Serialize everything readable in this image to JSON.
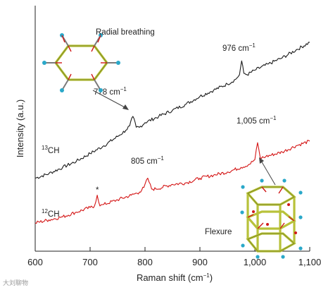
{
  "chart_data": {
    "type": "line",
    "xlabel": "Raman shift (cm",
    "xlabel_sup": "−1",
    "xlabel_close": ")",
    "ylabel": "Intensity (a.u.)",
    "xlim": [
      600,
      1100
    ],
    "xticks": [
      "600",
      "700",
      "800",
      "900",
      "1,000",
      "1,100"
    ],
    "xtick_values": [
      600,
      700,
      800,
      900,
      1000,
      1100
    ],
    "y_relative": true,
    "series": [
      {
        "name_sup": "13",
        "name": "CH",
        "color": "#1a1a1a",
        "x": [
          600,
          625,
          650,
          675,
          700,
          725,
          750,
          765,
          772,
          778,
          784,
          790,
          800,
          825,
          850,
          875,
          900,
          925,
          950,
          965,
          972,
          976,
          980,
          986,
          1000,
          1025,
          1050,
          1075,
          1100
        ],
        "y": [
          0.0,
          0.03,
          0.07,
          0.11,
          0.16,
          0.21,
          0.27,
          0.31,
          0.34,
          0.4,
          0.33,
          0.33,
          0.36,
          0.4,
          0.44,
          0.48,
          0.53,
          0.57,
          0.61,
          0.64,
          0.67,
          0.76,
          0.68,
          0.67,
          0.7,
          0.74,
          0.78,
          0.83,
          0.88
        ]
      },
      {
        "name_sup": "12",
        "name": "CH",
        "color": "#d41414",
        "x": [
          600,
          625,
          650,
          675,
          700,
          708,
          713,
          718,
          725,
          750,
          775,
          790,
          798,
          805,
          812,
          820,
          850,
          875,
          900,
          925,
          950,
          975,
          990,
          1000,
          1005,
          1010,
          1020,
          1050,
          1075,
          1100
        ],
        "y": [
          -0.29,
          -0.27,
          -0.25,
          -0.22,
          -0.19,
          -0.18,
          -0.11,
          -0.18,
          -0.17,
          -0.14,
          -0.11,
          -0.09,
          -0.06,
          0.0,
          -0.07,
          -0.07,
          -0.04,
          -0.03,
          0.0,
          0.02,
          0.04,
          0.07,
          0.09,
          0.12,
          0.23,
          0.13,
          0.14,
          0.17,
          0.21,
          0.24
        ]
      }
    ],
    "annotations": {
      "radial_breathing": "Radial breathing",
      "flexure": "Flexure",
      "peak_778": "778 cm",
      "peak_976": "976 cm",
      "peak_805": "805 cm",
      "peak_1005": "1,005 cm",
      "peak_sup": "−1",
      "asterisk": "*"
    },
    "grid": false
  },
  "watermark": "大刘聊物"
}
